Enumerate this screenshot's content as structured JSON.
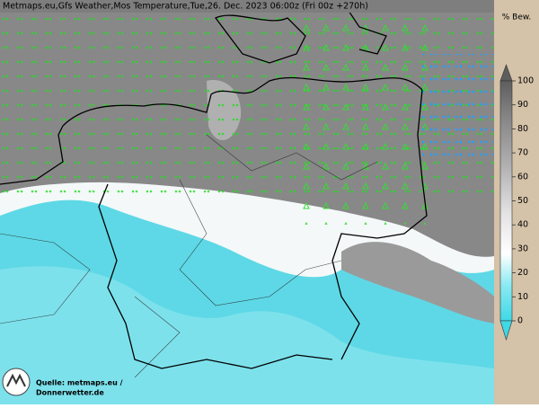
{
  "header": {
    "title": "Metmaps.eu,Gfs Weather,Mos Temperature,Tue,26. Dec. 2023 06:00z (Fri 00z +270h)"
  },
  "legend": {
    "title": "% Bew.",
    "ticks": [
      0,
      10,
      20,
      30,
      40,
      50,
      60,
      70,
      80,
      90,
      100
    ]
  },
  "source": {
    "line1": "Quelle: metmaps.eu /",
    "line2": "Donnerwetter.de"
  }
}
